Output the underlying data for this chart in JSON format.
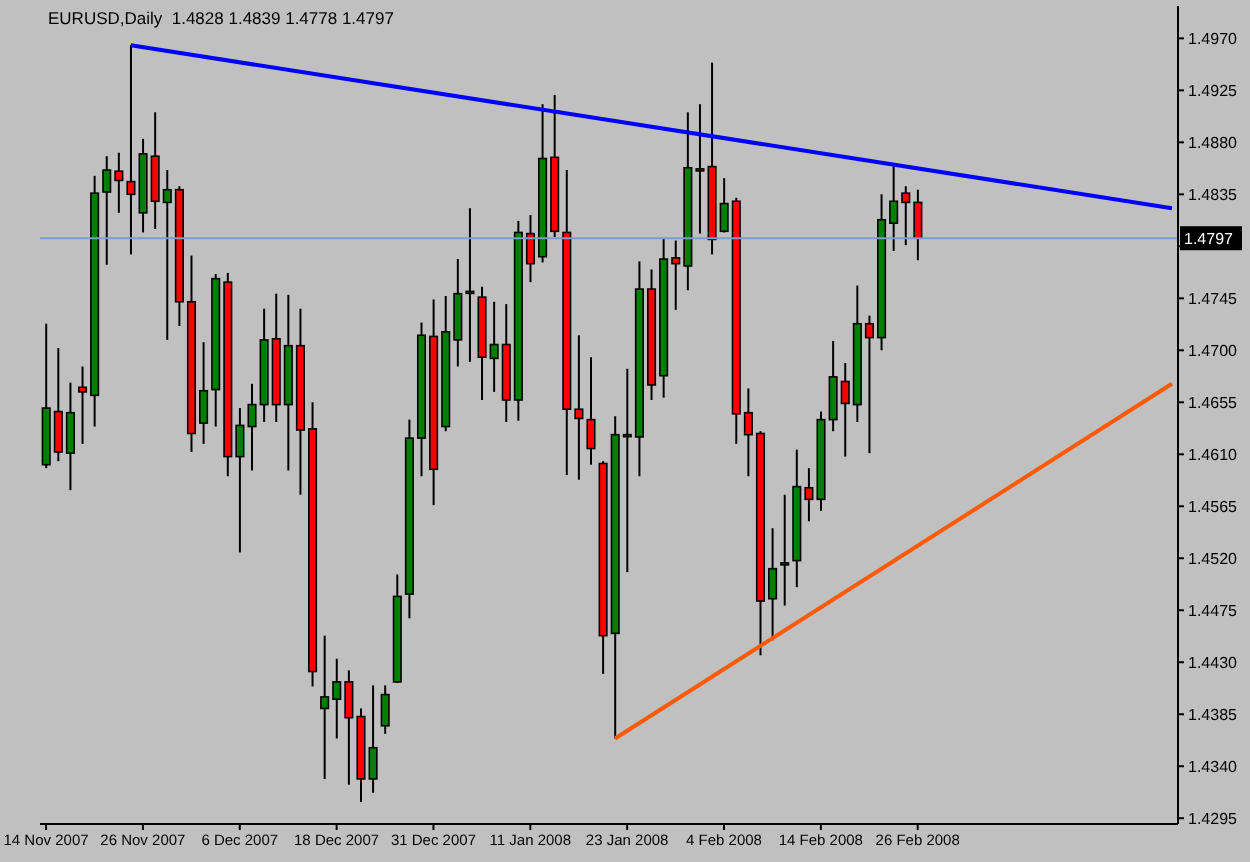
{
  "chart_data": {
    "type": "candlestick",
    "title": "EURUSD,Daily  1.4828 1.4839 1.4778 1.4797",
    "categories": [
      "14 Nov 2007",
      null,
      null,
      null,
      null,
      null,
      null,
      null,
      "26 Nov 2007",
      null,
      null,
      null,
      null,
      null,
      null,
      null,
      "6 Dec 2007",
      null,
      null,
      null,
      null,
      null,
      null,
      null,
      "18 Dec 2007",
      null,
      null,
      null,
      null,
      null,
      null,
      null,
      "31 Dec 2007",
      null,
      null,
      null,
      null,
      null,
      null,
      null,
      "11 Jan 2008",
      null,
      null,
      null,
      null,
      null,
      null,
      null,
      "23 Jan 2008",
      null,
      null,
      null,
      null,
      null,
      null,
      null,
      "4 Feb 2008",
      null,
      null,
      null,
      null,
      null,
      null,
      null,
      "14 Feb 2008",
      null,
      null,
      null,
      null,
      null,
      null,
      null,
      "26 Feb 2008",
      null,
      null,
      null,
      null,
      null,
      null,
      null,
      null,
      null,
      null,
      null,
      null,
      null,
      null,
      null,
      null,
      null,
      null,
      null,
      null,
      null
    ],
    "ohlc": [
      [
        1.4601,
        1.4723,
        1.4598,
        1.465
      ],
      [
        1.4647,
        1.4702,
        1.4604,
        1.4612
      ],
      [
        1.4611,
        1.4672,
        1.4579,
        1.4646
      ],
      [
        1.4668,
        1.4686,
        1.4619,
        1.4664
      ],
      [
        1.4661,
        1.4851,
        1.4634,
        1.4836
      ],
      [
        1.4837,
        1.4868,
        1.4774,
        1.4856
      ],
      [
        1.4855,
        1.4871,
        1.4819,
        1.4847
      ],
      [
        1.4846,
        1.4964,
        1.4783,
        1.4835
      ],
      [
        1.4819,
        1.4883,
        1.4802,
        1.487
      ],
      [
        1.4868,
        1.4906,
        1.4805,
        1.4829
      ],
      [
        1.4828,
        1.4856,
        1.4709,
        1.4839
      ],
      [
        1.4839,
        1.4842,
        1.4721,
        1.4742
      ],
      [
        1.4742,
        1.4782,
        1.4612,
        1.4628
      ],
      [
        1.4637,
        1.4707,
        1.4619,
        1.4665
      ],
      [
        1.4666,
        1.4766,
        1.4634,
        1.4762
      ],
      [
        1.4759,
        1.4767,
        1.4591,
        1.4608
      ],
      [
        1.4608,
        1.465,
        1.4525,
        1.4635
      ],
      [
        1.4634,
        1.4671,
        1.4596,
        1.4653
      ],
      [
        1.4653,
        1.4736,
        1.4638,
        1.4709
      ],
      [
        1.471,
        1.4749,
        1.4638,
        1.4653
      ],
      [
        1.4653,
        1.4748,
        1.4596,
        1.4704
      ],
      [
        1.4704,
        1.4736,
        1.4575,
        1.4631
      ],
      [
        1.4632,
        1.4655,
        1.4409,
        1.4422
      ],
      [
        1.439,
        1.4453,
        1.4329,
        1.44
      ],
      [
        1.4398,
        1.4433,
        1.4364,
        1.4413
      ],
      [
        1.4413,
        1.4423,
        1.4324,
        1.4382
      ],
      [
        1.4383,
        1.439,
        1.4309,
        1.4329
      ],
      [
        1.4329,
        1.441,
        1.4317,
        1.4356
      ],
      [
        1.4375,
        1.441,
        1.4368,
        1.4402
      ],
      [
        1.4413,
        1.4506,
        1.4412,
        1.4487
      ],
      [
        1.4489,
        1.464,
        1.4468,
        1.4624
      ],
      [
        1.4624,
        1.4724,
        1.4591,
        1.4713
      ],
      [
        1.4712,
        1.4744,
        1.4566,
        1.4597
      ],
      [
        1.4634,
        1.4747,
        1.463,
        1.4716
      ],
      [
        1.4709,
        1.4779,
        1.4686,
        1.4749
      ],
      [
        1.475,
        1.4823,
        1.469,
        1.4751
      ],
      [
        1.4746,
        1.4755,
        1.4657,
        1.4694
      ],
      [
        1.4693,
        1.4742,
        1.4664,
        1.4705
      ],
      [
        1.4705,
        1.474,
        1.4638,
        1.4657
      ],
      [
        1.4657,
        1.4812,
        1.4639,
        1.4802
      ],
      [
        1.4801,
        1.4817,
        1.4759,
        1.4775
      ],
      [
        1.4781,
        1.4913,
        1.4776,
        1.4866
      ],
      [
        1.4867,
        1.4921,
        1.4798,
        1.4803
      ],
      [
        1.4802,
        1.4856,
        1.4592,
        1.4649
      ],
      [
        1.4649,
        1.4713,
        1.4588,
        1.4641
      ],
      [
        1.464,
        1.4694,
        1.4601,
        1.4615
      ],
      [
        1.4602,
        1.4604,
        1.442,
        1.4453
      ],
      [
        1.4455,
        1.4643,
        1.4364,
        1.4627
      ],
      [
        1.4626,
        1.4684,
        1.4508,
        1.4627
      ],
      [
        1.4625,
        1.4777,
        1.4591,
        1.4753
      ],
      [
        1.4753,
        1.477,
        1.4657,
        1.467
      ],
      [
        1.4678,
        1.4797,
        1.4659,
        1.4779
      ],
      [
        1.478,
        1.4795,
        1.4735,
        1.4775
      ],
      [
        1.4773,
        1.4906,
        1.4752,
        1.4858
      ],
      [
        1.4857,
        1.4913,
        1.4801,
        1.4856
      ],
      [
        1.4859,
        1.4949,
        1.4783,
        1.4796
      ],
      [
        1.4803,
        1.4849,
        1.4802,
        1.4827
      ],
      [
        1.4829,
        1.4832,
        1.4619,
        1.4645
      ],
      [
        1.4646,
        1.4667,
        1.4591,
        1.4627
      ],
      [
        1.4628,
        1.463,
        1.4436,
        1.4483
      ],
      [
        1.4485,
        1.4546,
        1.4449,
        1.4511
      ],
      [
        1.4515,
        1.4575,
        1.4479,
        1.4516
      ],
      [
        1.4518,
        1.4614,
        1.4495,
        1.4582
      ],
      [
        1.4581,
        1.4598,
        1.4552,
        1.4571
      ],
      [
        1.4571,
        1.4647,
        1.4561,
        1.464
      ],
      [
        1.464,
        1.4708,
        1.463,
        1.4677
      ],
      [
        1.4673,
        1.4689,
        1.4608,
        1.4654
      ],
      [
        1.4653,
        1.4756,
        1.4638,
        1.4723
      ],
      [
        1.4723,
        1.473,
        1.4611,
        1.4711
      ],
      [
        1.4711,
        1.4835,
        1.47,
        1.4813
      ],
      [
        1.481,
        1.486,
        1.4786,
        1.4829
      ],
      [
        1.4836,
        1.4842,
        1.4791,
        1.4828
      ],
      [
        1.4828,
        1.4839,
        1.4778,
        1.4797
      ],
      null,
      null,
      null,
      null,
      null,
      null,
      null,
      null,
      null,
      null,
      null,
      null,
      null,
      null,
      null,
      null,
      null,
      null,
      null,
      null,
      null
    ],
    "colors": [
      "#008000",
      "#ff0000",
      "#008000",
      "#ff0000",
      "#008000",
      "#008000",
      "#ff0000",
      "#ff0000",
      "#008000",
      "#ff0000",
      "#008000",
      "#ff0000",
      "#ff0000",
      "#008000",
      "#008000",
      "#ff0000",
      "#008000",
      "#008000",
      "#008000",
      "#ff0000",
      "#008000",
      "#ff0000",
      "#ff0000",
      "#008000",
      "#008000",
      "#ff0000",
      "#ff0000",
      "#008000",
      "#008000",
      "#008000",
      "#008000",
      "#008000",
      "#ff0000",
      "#008000",
      "#008000",
      "#008000",
      "#ff0000",
      "#008000",
      "#ff0000",
      "#008000",
      "#ff0000",
      "#008000",
      "#ff0000",
      "#ff0000",
      "#ff0000",
      "#ff0000",
      "#ff0000",
      "#008000",
      "#008000",
      "#008000",
      "#ff0000",
      "#008000",
      "#ff0000",
      "#008000",
      "#ff0000",
      "#ff0000",
      "#008000",
      "#ff0000",
      "#ff0000",
      "#ff0000",
      "#008000",
      "#008000",
      "#008000",
      "#ff0000",
      "#008000",
      "#008000",
      "#ff0000",
      "#008000",
      "#ff0000",
      "#008000",
      "#008000",
      "#ff0000",
      "#ff0000",
      null,
      null,
      null,
      null,
      null,
      null,
      null,
      null,
      null,
      null,
      null,
      null,
      null,
      null,
      null,
      null,
      null,
      null,
      null,
      null,
      null
    ],
    "series": [
      {
        "type": "line",
        "color": "#0000ff",
        "values": [
          null,
          null,
          null,
          null,
          null,
          null,
          null,
          1.4964,
          null,
          null,
          null,
          null,
          null,
          null,
          null,
          null,
          null,
          null,
          null,
          null,
          null,
          null,
          null,
          null,
          null,
          null,
          null,
          null,
          null,
          null,
          null,
          null,
          null,
          null,
          null,
          null,
          null,
          null,
          null,
          null,
          null,
          null,
          null,
          null,
          null,
          null,
          null,
          null,
          null,
          null,
          null,
          null,
          null,
          null,
          null,
          null,
          null,
          null,
          null,
          null,
          null,
          null,
          null,
          null,
          null,
          null,
          null,
          null,
          null,
          null,
          null,
          null,
          null,
          null,
          null,
          null,
          null,
          null,
          null,
          null,
          null,
          null,
          null,
          null,
          null,
          null,
          null,
          null,
          null,
          null,
          null,
          null,
          null,
          1.4823
        ]
      },
      {
        "type": "line",
        "color": "#ff5a00",
        "values": [
          null,
          null,
          null,
          null,
          null,
          null,
          null,
          null,
          null,
          null,
          null,
          null,
          null,
          null,
          null,
          null,
          null,
          null,
          null,
          null,
          null,
          null,
          null,
          null,
          null,
          null,
          null,
          null,
          null,
          null,
          null,
          null,
          null,
          null,
          null,
          null,
          null,
          null,
          null,
          null,
          null,
          null,
          null,
          null,
          null,
          null,
          null,
          1.4364,
          null,
          null,
          null,
          null,
          null,
          null,
          null,
          null,
          null,
          null,
          null,
          null,
          null,
          null,
          null,
          null,
          null,
          null,
          null,
          null,
          null,
          null,
          null,
          null,
          null,
          null,
          null,
          null,
          null,
          null,
          null,
          null,
          null,
          null,
          null,
          null,
          null,
          null,
          null,
          null,
          null,
          null,
          null,
          null,
          null,
          1.4671
        ]
      }
    ],
    "ylim": [
      1.429,
      1.4998
    ],
    "yticks": [
      1.4295,
      {
        "value": 1.434,
        "label": "1.4340"
      },
      1.4385,
      {
        "value": 1.443,
        "label": "1.4430"
      },
      1.4475,
      {
        "value": 1.452,
        "label": "1.4520"
      },
      1.4565,
      {
        "value": 1.461,
        "label": "1.4610"
      },
      1.4655,
      {
        "value": 1.47,
        "label": "1.4700"
      },
      1.4745,
      {
        "value": 1.479,
        "label": null
      },
      1.4835,
      {
        "value": 1.488,
        "label": "1.4880"
      },
      1.4925,
      {
        "value": 1.497,
        "label": "1.4970"
      }
    ],
    "ref_lines": [
      {
        "axis": "y",
        "value": 1.4797,
        "label": "1.4797",
        "color": "#7e9dc6"
      }
    ]
  }
}
